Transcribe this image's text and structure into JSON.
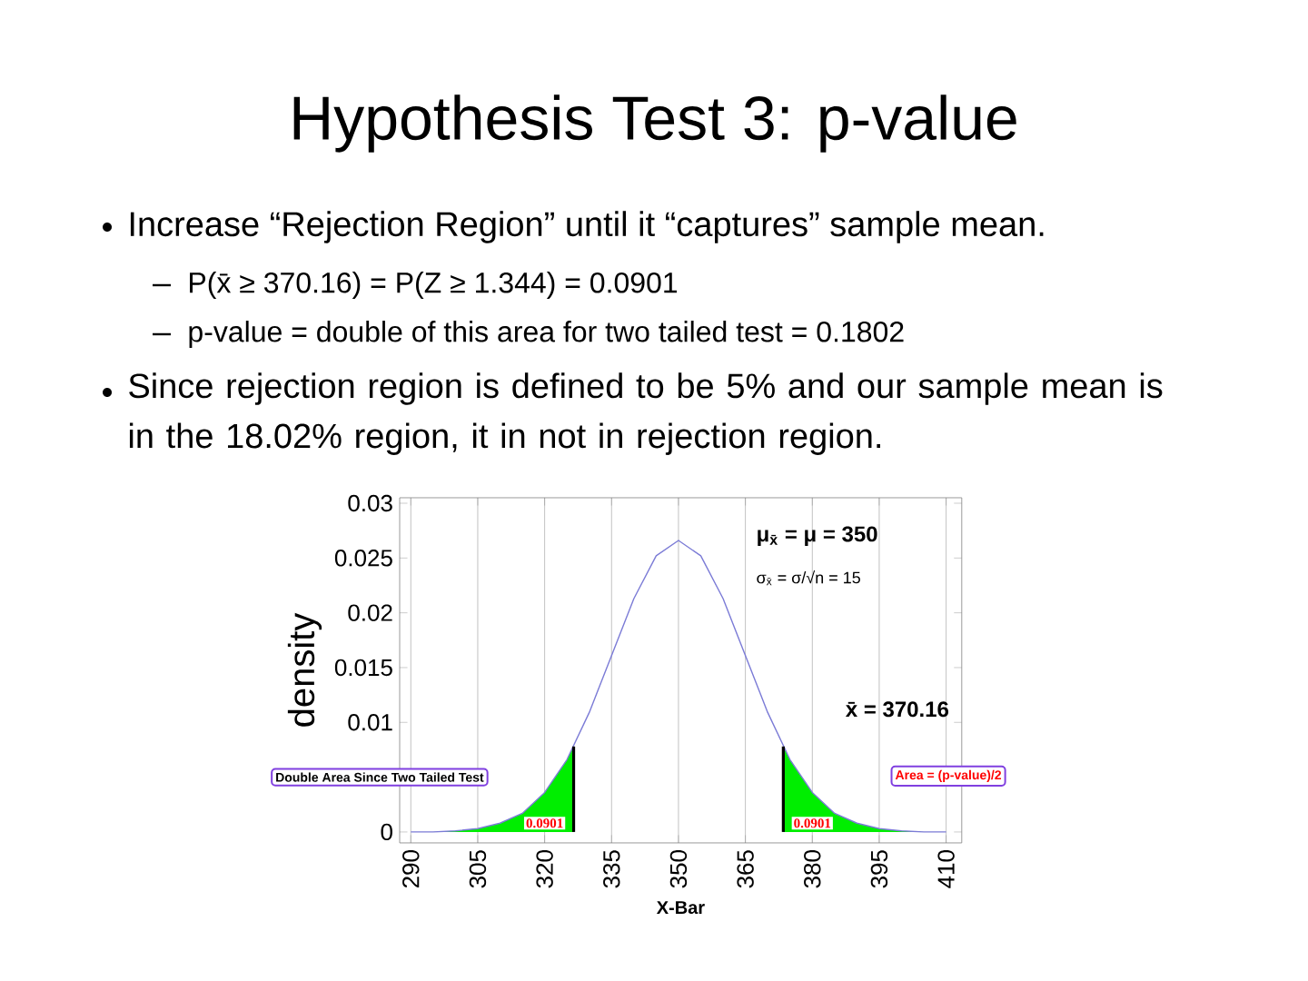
{
  "chart_data": {
    "type": "line",
    "title": "Hypothesis Test 3: p-value",
    "xlabel": "X-Bar",
    "ylabel": "density",
    "xlim": [
      287.5,
      413.5
    ],
    "ylim": [
      -0.001,
      0.0305
    ],
    "xticks": [
      290,
      305,
      320,
      335,
      350,
      365,
      380,
      395,
      410
    ],
    "yticks": [
      0,
      {
        "value": 0.005,
        "label": null
      },
      0.01,
      0.015,
      0.02,
      0.025,
      0.03
    ],
    "grid": "x",
    "series": [
      {
        "type": "area",
        "color": "#00ee00",
        "x": [
          290,
          295,
          300,
          305,
          310,
          315,
          320,
          325,
          326.5
        ],
        "values": [
          0.0,
          0.0,
          0.0001,
          0.0003,
          0.0008,
          0.0017,
          0.0036,
          0.0066,
          0.0078
        ]
      },
      {
        "type": "area",
        "color": "#00ee00",
        "x": [
          373.5,
          375,
          380,
          385,
          390,
          395,
          400,
          405,
          410
        ],
        "values": [
          0.0078,
          0.0066,
          0.0036,
          0.0017,
          0.0008,
          0.0003,
          0.0001,
          0.0,
          0.0
        ]
      },
      {
        "color": "#7b7bd6",
        "x": [
          290,
          295,
          300,
          305,
          310,
          315,
          320,
          325,
          330,
          335,
          340,
          345,
          350,
          355,
          360,
          365,
          370,
          375,
          380,
          385,
          390,
          395,
          400,
          405,
          410
        ],
        "values": [
          0.0,
          0.0,
          0.0001,
          0.0003,
          0.0008,
          0.0017,
          0.0036,
          0.0066,
          0.0109,
          0.0161,
          0.0213,
          0.0252,
          0.0266,
          0.0252,
          0.0213,
          0.0161,
          0.0109,
          0.0066,
          0.0036,
          0.0017,
          0.0008,
          0.0003,
          0.0001,
          0.0,
          0.0
        ]
      },
      {
        "type": "bar",
        "color": "#000000",
        "x": [
          326.5,
          373.5
        ],
        "values": [
          0.0078,
          0.0078
        ]
      }
    ],
    "annotations": [
      "Increase “Rejection Region” until it “captures” sample mean.",
      "P(x̄ ≥ 370.16) = P(Z ≥ 1.344) = 0.0901",
      "p-value = double of this area for two tailed test = 0.1802",
      "Since rejection region is defined to be 5% and our sample mean is in the 18.02% region, it in not in rejection region.",
      "μ$_{x̄}$ = μ = 350",
      "σ$_{x̄}$ = σ/√n = 15",
      "x̄ = 370.16",
      "Double Area Since Two Tailed Test",
      "Area = (p-value)/2",
      {
        "text": "0.0901",
        "x": 320,
        "y": 0.0008
      },
      {
        "text": "0.0901",
        "x": 380,
        "y": 0.0008
      }
    ]
  }
}
